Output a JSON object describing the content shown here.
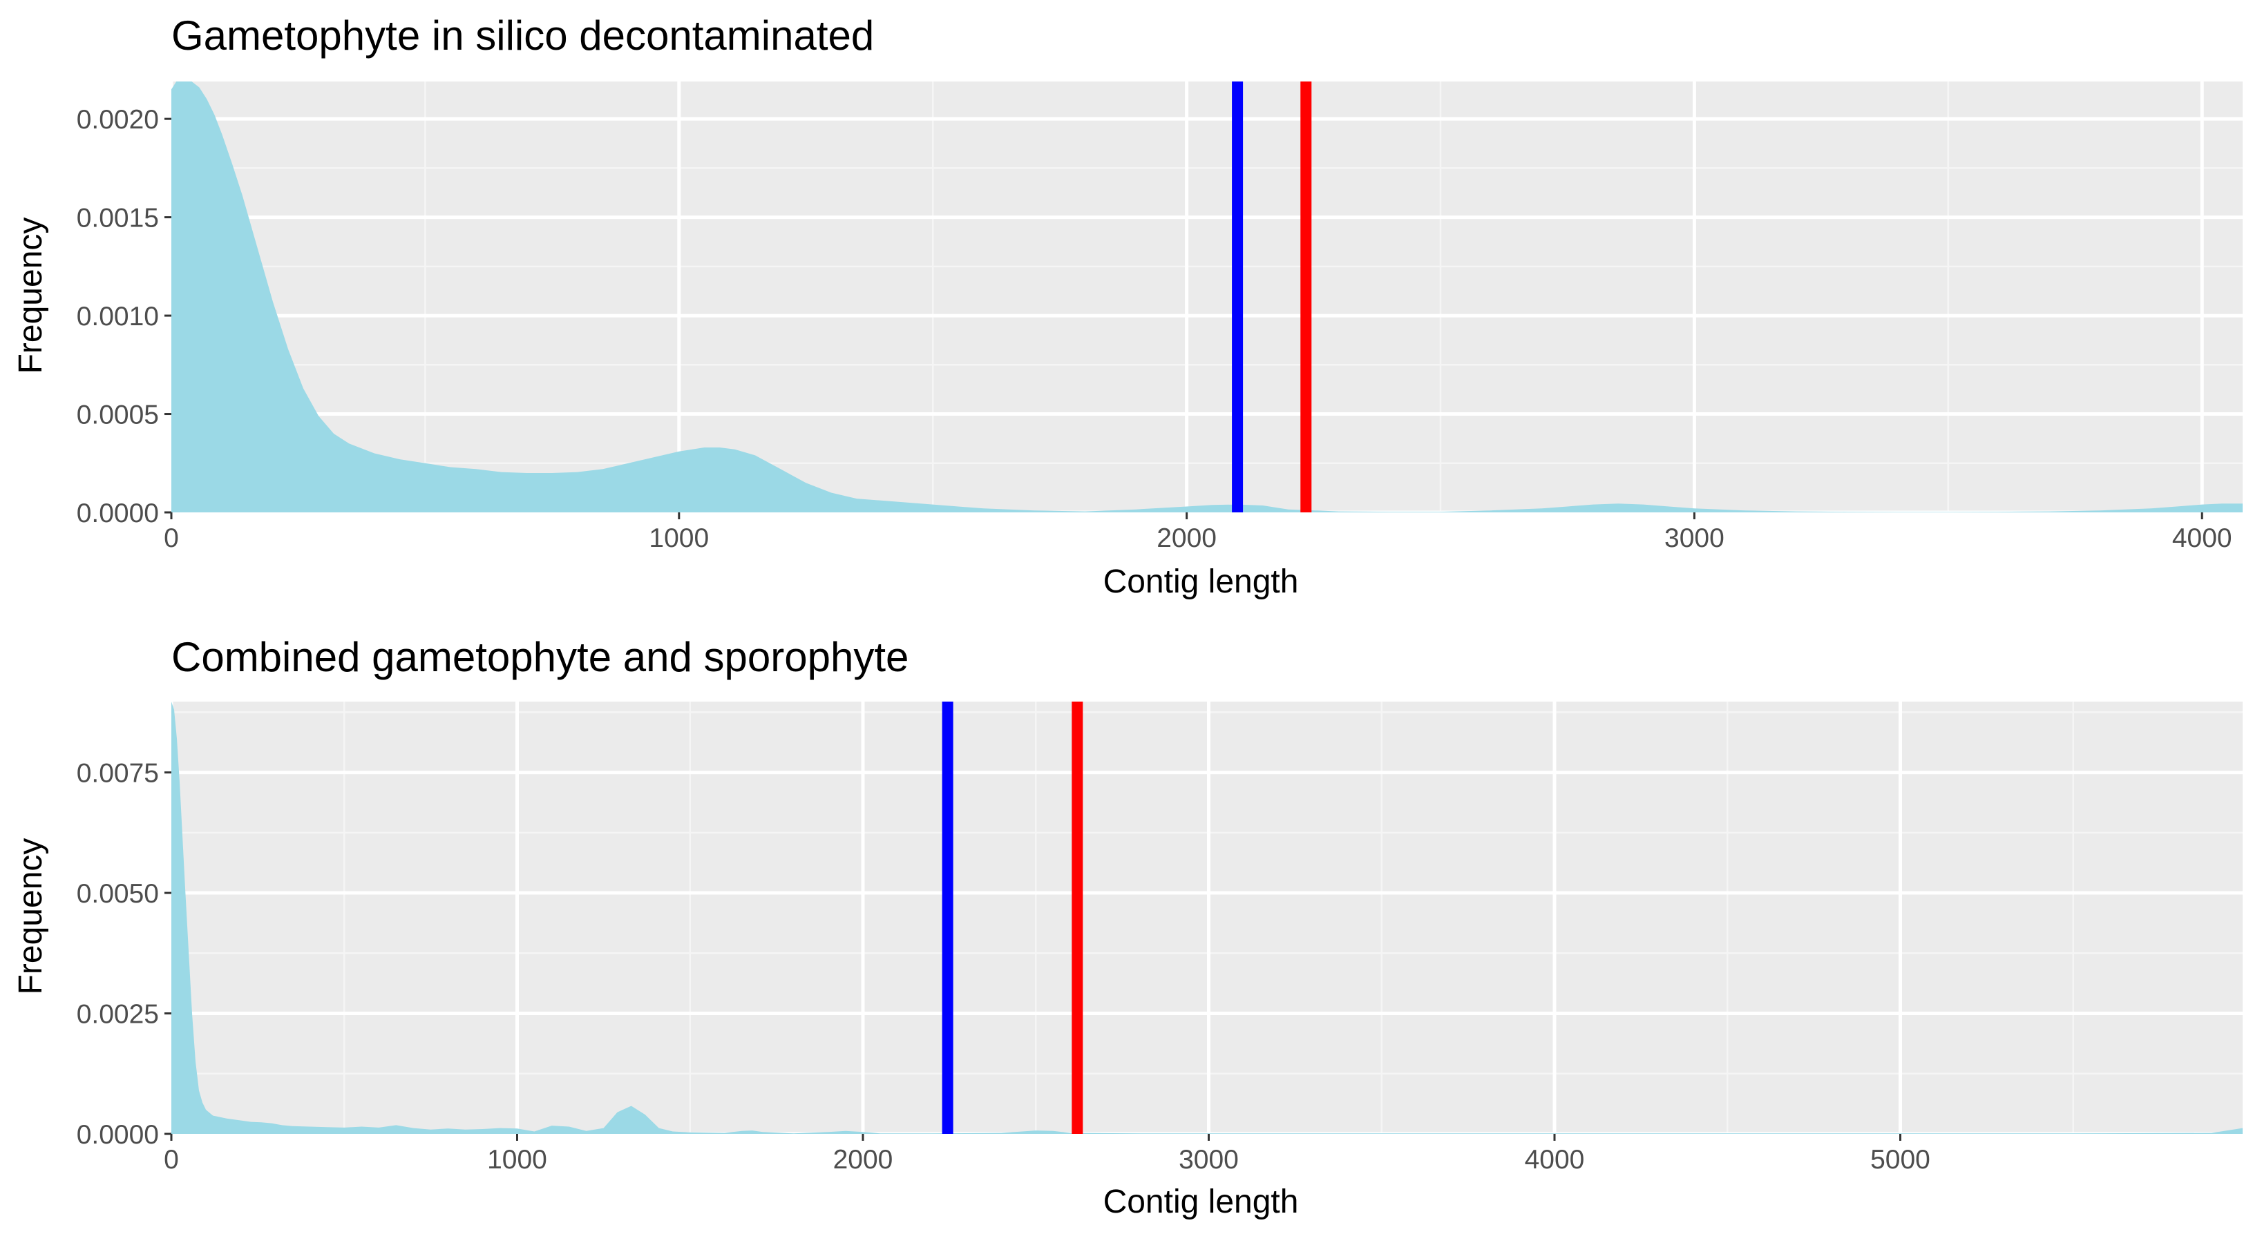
{
  "colors": {
    "panel_background": "#ebebeb",
    "grid_major": "#ffffff",
    "grid_minor": "#f5f5f5",
    "tick_mark": "#333333",
    "density_fill": "#9bd9e6",
    "line_1": "#0000ff",
    "line_2": "#ff0000"
  },
  "chart_data": [
    {
      "type": "area",
      "title": "Gametophyte in silico decontaminated",
      "xlabel": "Contig length",
      "ylabel": "Frequency",
      "xlim": [
        0,
        4080
      ],
      "ylim": [
        0,
        0.00219
      ],
      "x_ticks": [
        0,
        1000,
        2000,
        3000,
        4000
      ],
      "y_ticks": [
        0.0,
        0.0005,
        0.001,
        0.0015,
        0.002
      ],
      "x_tick_labels": [
        "0",
        "1000",
        "2000",
        "3000",
        "4000"
      ],
      "y_tick_labels": [
        "0.0000",
        "0.0005",
        "0.0010",
        "0.0015",
        "0.0020"
      ],
      "grid": true,
      "series": [
        {
          "x": [
            0,
            10,
            25,
            40,
            55,
            70,
            85,
            100,
            120,
            140,
            160,
            180,
            200,
            230,
            260,
            290,
            320,
            350,
            400,
            450,
            500,
            550,
            600,
            650,
            700,
            750,
            800,
            850,
            900,
            950,
            1000,
            1050,
            1080,
            1110,
            1150,
            1200,
            1250,
            1300,
            1350,
            1400,
            1450,
            1500,
            1550,
            1600,
            1700,
            1800,
            1900,
            2000,
            2050,
            2100,
            2150,
            2200,
            2300,
            2400,
            2500,
            2600,
            2700,
            2750,
            2800,
            2850,
            2900,
            2950,
            3000,
            3100,
            3200,
            3300,
            3400,
            3500,
            3600,
            3700,
            3800,
            3900,
            3950,
            4000,
            4040,
            4080
          ],
          "y": [
            0.00215,
            0.00219,
            0.00219,
            0.00219,
            0.00216,
            0.0021,
            0.00202,
            0.00192,
            0.00177,
            0.00161,
            0.00143,
            0.00125,
            0.00107,
            0.00083,
            0.00063,
            0.00049,
            0.0004,
            0.00035,
            0.0003,
            0.00027,
            0.00025,
            0.00023,
            0.00022,
            0.000205,
            0.0002,
            0.0002,
            0.000205,
            0.00022,
            0.00025,
            0.00028,
            0.00031,
            0.00033,
            0.00033,
            0.00032,
            0.00029,
            0.00022,
            0.00015,
            0.0001,
            7e-05,
            6e-05,
            5e-05,
            4e-05,
            3e-05,
            2e-05,
            1e-05,
            5e-06,
            1.5e-05,
            3e-05,
            3.8e-05,
            4e-05,
            3.5e-05,
            1.5e-05,
            5e-06,
            3e-06,
            3e-06,
            1e-05,
            2e-05,
            3e-05,
            4e-05,
            4.5e-05,
            4e-05,
            3e-05,
            2e-05,
            1e-05,
            5e-06,
            3e-06,
            2e-06,
            2e-06,
            3e-06,
            5e-06,
            1e-05,
            2e-05,
            3e-05,
            4e-05,
            4.5e-05,
            4.5e-05
          ]
        }
      ],
      "vertical_lines": [
        {
          "x": 2100,
          "color": "#0000ff"
        },
        {
          "x": 2235,
          "color": "#ff0000"
        }
      ]
    },
    {
      "type": "area",
      "title": "Combined gametophyte and sporophyte",
      "xlabel": "Contig length",
      "ylabel": "Frequency",
      "xlim": [
        0,
        5990
      ],
      "ylim": [
        0,
        0.00897
      ],
      "x_ticks": [
        0,
        1000,
        2000,
        3000,
        4000,
        5000
      ],
      "y_ticks": [
        0.0,
        0.0025,
        0.005,
        0.0075
      ],
      "x_tick_labels": [
        "0",
        "1000",
        "2000",
        "3000",
        "4000",
        "5000"
      ],
      "y_tick_labels": [
        "0.0000",
        "0.0025",
        "0.0050",
        "0.0075"
      ],
      "grid": true,
      "series": [
        {
          "x": [
            0,
            8,
            16,
            24,
            32,
            40,
            50,
            60,
            70,
            80,
            90,
            100,
            120,
            140,
            160,
            180,
            200,
            230,
            260,
            290,
            320,
            350,
            400,
            450,
            500,
            550,
            600,
            650,
            700,
            750,
            800,
            850,
            900,
            950,
            1000,
            1050,
            1100,
            1150,
            1200,
            1250,
            1290,
            1330,
            1370,
            1410,
            1450,
            1500,
            1600,
            1650,
            1680,
            1710,
            1800,
            1900,
            1950,
            2000,
            2050,
            2200,
            2400,
            2500,
            2550,
            2600,
            2800,
            3000,
            3500,
            4000,
            4500,
            5000,
            5500,
            5900,
            5990
          ],
          "y": [
            0.00897,
            0.0088,
            0.0082,
            0.0073,
            0.0062,
            0.0051,
            0.0038,
            0.0025,
            0.0015,
            0.0009,
            0.00065,
            0.0005,
            0.00038,
            0.00035,
            0.00032,
            0.0003,
            0.00028,
            0.00025,
            0.00024,
            0.00022,
            0.00018,
            0.00016,
            0.00015,
            0.00014,
            0.00013,
            0.00015,
            0.00013,
            0.00018,
            0.00012,
            9e-05,
            0.00011,
            9e-05,
            0.0001,
            0.00012,
            0.00011,
            5e-05,
            0.00017,
            0.00015,
            6e-05,
            0.00012,
            0.00045,
            0.00058,
            0.0004,
            0.00012,
            5e-05,
            3e-05,
            2e-05,
            6e-05,
            7e-05,
            4e-05,
            1e-05,
            4e-05,
            6e-05,
            4e-05,
            1e-05,
            1e-05,
            2e-05,
            7e-05,
            6e-05,
            2e-05,
            1e-05,
            1e-05,
            1e-05,
            1e-05,
            1e-05,
            1e-05,
            1e-05,
            2e-05,
            0.00012
          ]
        }
      ],
      "vertical_lines": [
        {
          "x": 2245,
          "color": "#0000ff"
        },
        {
          "x": 2620,
          "color": "#ff0000"
        }
      ]
    }
  ]
}
